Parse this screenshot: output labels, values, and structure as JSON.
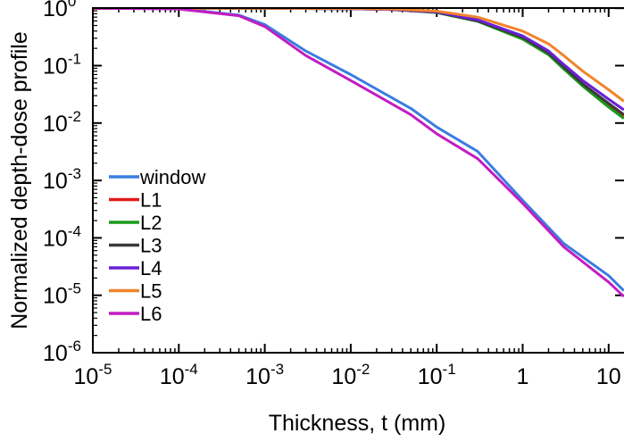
{
  "chart_data": {
    "type": "line",
    "xlabel": "Thickness, t (mm)",
    "ylabel": "Normalized depth-dose profile",
    "x_scale": "log",
    "y_scale": "log",
    "xlim": [
      1e-05,
      15
    ],
    "ylim": [
      1e-06,
      1.6
    ],
    "x_ticks": [
      {
        "value": 1e-05,
        "base": "10",
        "exp": "-5"
      },
      {
        "value": 0.0001,
        "base": "10",
        "exp": "-4"
      },
      {
        "value": 0.001,
        "base": "10",
        "exp": "-3"
      },
      {
        "value": 0.01,
        "base": "10",
        "exp": "-2"
      },
      {
        "value": 0.1,
        "base": "10",
        "exp": "-1"
      },
      {
        "value": 1,
        "base": "1",
        "exp": ""
      },
      {
        "value": 10,
        "base": "10",
        "exp": ""
      }
    ],
    "y_ticks": [
      {
        "value": 1,
        "base": "10",
        "exp": "0"
      },
      {
        "value": 0.1,
        "base": "10",
        "exp": "-1"
      },
      {
        "value": 0.01,
        "base": "10",
        "exp": "-2"
      },
      {
        "value": 0.001,
        "base": "10",
        "exp": "-3"
      },
      {
        "value": 0.0001,
        "base": "10",
        "exp": "-4"
      },
      {
        "value": 1e-05,
        "base": "10",
        "exp": "-5"
      },
      {
        "value": 1e-06,
        "base": "10",
        "exp": "-6"
      }
    ],
    "grid": false,
    "legend_position": "bottom-left",
    "series": [
      {
        "name": "window",
        "color": "#3a7de0",
        "x": [
          1e-05,
          0.0001,
          0.0005,
          0.001,
          0.003,
          0.01,
          0.05,
          0.1,
          0.3,
          1,
          3,
          10,
          15
        ],
        "y": [
          1.0,
          0.98,
          0.76,
          0.52,
          0.18,
          0.07,
          0.018,
          0.0085,
          0.0032,
          0.00045,
          8e-05,
          2.2e-05,
          1.2e-05
        ]
      },
      {
        "name": "L1",
        "color": "#e01b1b",
        "x": [
          1e-05,
          0.001,
          0.01,
          0.03,
          0.1,
          0.3,
          1,
          2,
          3,
          5,
          10,
          15
        ],
        "y": [
          1.0,
          1.0,
          0.98,
          0.95,
          0.85,
          0.6,
          0.3,
          0.16,
          0.09,
          0.045,
          0.02,
          0.013
        ]
      },
      {
        "name": "L2",
        "color": "#1a9a1a",
        "x": [
          1e-05,
          0.001,
          0.01,
          0.03,
          0.1,
          0.3,
          1,
          2,
          3,
          5,
          10,
          15
        ],
        "y": [
          1.0,
          1.0,
          0.98,
          0.95,
          0.84,
          0.59,
          0.29,
          0.155,
          0.088,
          0.044,
          0.019,
          0.012
        ]
      },
      {
        "name": "L3",
        "color": "#3a3a3a",
        "x": [
          1e-05,
          0.001,
          0.01,
          0.03,
          0.1,
          0.3,
          1,
          2,
          3,
          5,
          10,
          15
        ],
        "y": [
          1.0,
          1.0,
          0.98,
          0.95,
          0.85,
          0.6,
          0.31,
          0.165,
          0.095,
          0.048,
          0.022,
          0.014
        ]
      },
      {
        "name": "L4",
        "color": "#6a20d8",
        "x": [
          1e-05,
          0.001,
          0.01,
          0.03,
          0.1,
          0.3,
          1,
          2,
          3,
          5,
          10,
          15
        ],
        "y": [
          1.0,
          1.0,
          0.98,
          0.95,
          0.86,
          0.63,
          0.33,
          0.18,
          0.105,
          0.055,
          0.026,
          0.017
        ]
      },
      {
        "name": "L5",
        "color": "#f0842a",
        "x": [
          1e-05,
          0.001,
          0.01,
          0.03,
          0.1,
          0.3,
          1,
          2,
          3,
          5,
          10,
          15
        ],
        "y": [
          1.0,
          1.0,
          0.99,
          0.97,
          0.89,
          0.7,
          0.4,
          0.24,
          0.15,
          0.08,
          0.038,
          0.024
        ]
      },
      {
        "name": "L6",
        "color": "#c21cc2",
        "x": [
          1e-05,
          0.0001,
          0.0005,
          0.001,
          0.003,
          0.01,
          0.05,
          0.1,
          0.3,
          1,
          3,
          10,
          15
        ],
        "y": [
          1.0,
          0.97,
          0.74,
          0.48,
          0.15,
          0.055,
          0.014,
          0.0065,
          0.0024,
          0.0004,
          7e-05,
          1.7e-05,
          9.5e-06
        ]
      }
    ]
  }
}
